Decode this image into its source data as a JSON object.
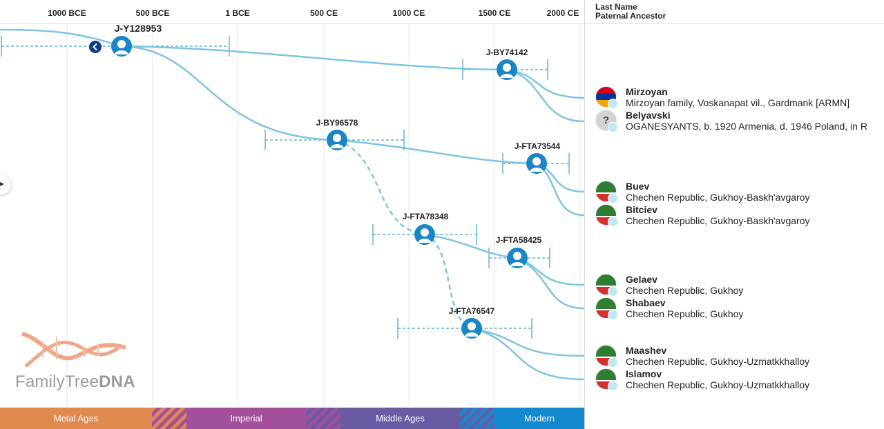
{
  "timeline": {
    "ticks": [
      "1000 BCE",
      "500 BCE",
      "1 BCE",
      "500 CE",
      "1000 CE",
      "1500 CE",
      "2000 CE"
    ]
  },
  "header": {
    "col_last_name": "Last Name",
    "col_paternal": "Paternal Ancestor"
  },
  "nodes": [
    "J-Y128953",
    "J-BY74142",
    "J-BY96578",
    "J-FTA73544",
    "J-FTA78348",
    "J-FTA58425",
    "J-FTA76547"
  ],
  "rows": [
    {
      "name": "Mirzoyan",
      "desc": "Mirzoyan family, Voskanapat vil., Gardmank [ARMN]",
      "flag": "armenia-flag"
    },
    {
      "name": "Belyavski",
      "desc": "OGANESYANTS, b. 1920 Armenia, d. 1946 Poland, in R",
      "flag": "unknown-flag"
    },
    {
      "name": "Buev",
      "desc": "Chechen Republic, Gukhoy-Baskh'avgaroy",
      "flag": "chechnya-flag"
    },
    {
      "name": "Bitciev",
      "desc": "Chechen Republic, Gukhoy-Baskh'avgaroy",
      "flag": "chechnya-flag"
    },
    {
      "name": "Gelaev",
      "desc": "Chechen Republic, Gukhoy",
      "flag": "chechnya-flag"
    },
    {
      "name": "Shabaev",
      "desc": "Chechen Republic, Gukhoy",
      "flag": "chechnya-flag"
    },
    {
      "name": "Maashev",
      "desc": "Chechen Republic, Gukhoy-Uzmatkkhalloy",
      "flag": "chechnya-flag"
    },
    {
      "name": "Islamov",
      "desc": "Chechen Republic, Gukhoy-Uzmatkkhalloy",
      "flag": "chechnya-flag"
    }
  ],
  "unknown_symbol": "?",
  "eras": [
    "Metal Ages",
    "Imperial",
    "Middle Ages",
    "Modern"
  ],
  "logo": {
    "prefix": "FamilyTree",
    "suffix": "DNA"
  },
  "colors": {
    "branch": "#7ec3e3",
    "node": "#1a86c8",
    "metal": "#e08a4f",
    "imperial": "#a24f9c",
    "middle": "#6a5aa3",
    "modern": "#1589d0"
  }
}
